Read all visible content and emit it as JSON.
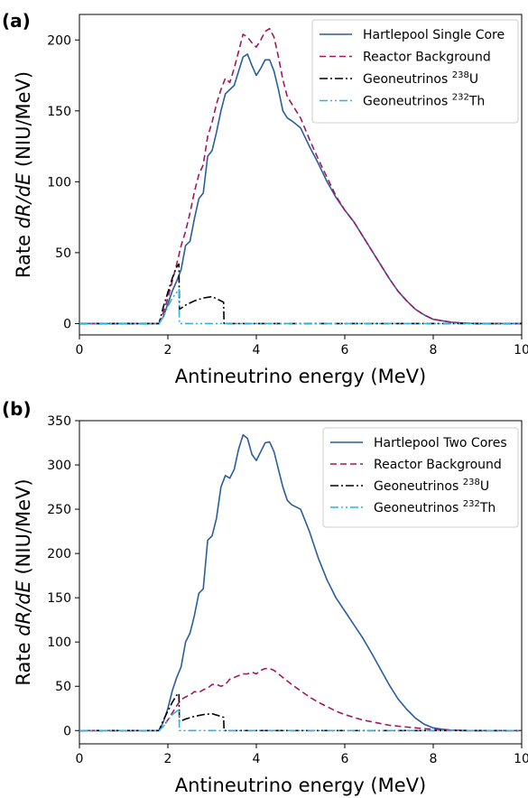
{
  "chart_data": [
    {
      "panel_label": "(a)",
      "type": "line",
      "xlabel": "Antineutrino energy (MeV)",
      "ylabel_prefix": "Rate ",
      "ylabel_italic": "dR/dE",
      "ylabel_suffix": " (NIU/MeV)",
      "xlim": [
        0,
        10
      ],
      "ylim": [
        -8,
        218
      ],
      "xticks": [
        0,
        2,
        4,
        6,
        8,
        10
      ],
      "yticks": [
        0,
        50,
        100,
        150,
        200
      ],
      "legend_position": "top-right",
      "series": [
        {
          "name": "Hartlepool Single Core",
          "color": "#2a5d9f",
          "dash": "solid",
          "x": [
            0,
            1.8,
            1.9,
            2.0,
            2.1,
            2.2,
            2.3,
            2.4,
            2.5,
            2.6,
            2.7,
            2.8,
            2.9,
            3.0,
            3.1,
            3.2,
            3.3,
            3.4,
            3.5,
            3.6,
            3.7,
            3.8,
            3.9,
            4.0,
            4.1,
            4.2,
            4.3,
            4.4,
            4.5,
            4.6,
            4.7,
            4.8,
            5.0,
            5.2,
            5.4,
            5.6,
            5.8,
            6.0,
            6.2,
            6.4,
            6.6,
            6.8,
            7.0,
            7.2,
            7.4,
            7.6,
            7.8,
            8.0,
            8.2,
            8.4,
            8.6,
            8.8,
            9.0,
            10.0
          ],
          "y": [
            0,
            0,
            5,
            14,
            23,
            30,
            38,
            55,
            58,
            74,
            88,
            92,
            118,
            122,
            135,
            150,
            162,
            165,
            168,
            178,
            188,
            190,
            182,
            175,
            180,
            186,
            186,
            178,
            165,
            150,
            145,
            143,
            138,
            125,
            113,
            100,
            89,
            80,
            72,
            62,
            52,
            42,
            32,
            23,
            16,
            10,
            6,
            3,
            2,
            1,
            0.5,
            0.2,
            0,
            0
          ]
        },
        {
          "name": "Reactor Background",
          "color": "#a3175e",
          "dash": "7,4",
          "x": [
            0,
            1.8,
            1.9,
            2.0,
            2.1,
            2.2,
            2.3,
            2.4,
            2.5,
            2.6,
            2.7,
            2.8,
            2.9,
            3.0,
            3.1,
            3.2,
            3.3,
            3.4,
            3.5,
            3.6,
            3.7,
            3.8,
            3.9,
            4.0,
            4.1,
            4.2,
            4.3,
            4.4,
            4.5,
            4.6,
            4.7,
            4.8,
            5.0,
            5.2,
            5.4,
            5.6,
            5.8,
            6.0,
            6.2,
            6.4,
            6.6,
            6.8,
            7.0,
            7.2,
            7.4,
            7.6,
            7.8,
            8.0,
            8.2,
            8.4,
            8.6,
            8.8,
            9.0,
            10.0
          ],
          "y": [
            0,
            0,
            8,
            18,
            30,
            42,
            55,
            65,
            78,
            93,
            105,
            112,
            132,
            142,
            155,
            165,
            173,
            170,
            180,
            192,
            204,
            202,
            198,
            195,
            200,
            206,
            208,
            202,
            188,
            172,
            160,
            155,
            145,
            130,
            116,
            103,
            90,
            80,
            72,
            62,
            52,
            42,
            32,
            23,
            16,
            10,
            6,
            3,
            2,
            1,
            0.5,
            0.2,
            0,
            0
          ]
        },
        {
          "name_prefix": "Geoneutrinos ",
          "name_sup": "238",
          "name_suffix": "U",
          "color": "#000000",
          "dash": "9,3,2,3",
          "x": [
            0,
            1.8,
            1.9,
            2.0,
            2.1,
            2.2,
            2.25,
            2.26,
            2.4,
            2.6,
            2.8,
            3.0,
            3.2,
            3.26,
            3.27,
            10.0
          ],
          "y": [
            0,
            0,
            12,
            22,
            32,
            40,
            42,
            10,
            13,
            16,
            18,
            19,
            16,
            15,
            0,
            0
          ]
        },
        {
          "name_prefix": "Geoneutrinos ",
          "name_sup": "232",
          "name_suffix": "Th",
          "color": "#2bb3e8",
          "dash": "9,3,2,3,2,3",
          "x": [
            0,
            1.8,
            1.9,
            2.0,
            2.1,
            2.2,
            2.25,
            2.26,
            10.0
          ],
          "y": [
            0,
            0,
            5,
            12,
            18,
            22,
            24,
            0,
            0
          ]
        }
      ]
    },
    {
      "panel_label": "(b)",
      "type": "line",
      "xlabel": "Antineutrino energy (MeV)",
      "ylabel_prefix": "Rate ",
      "ylabel_italic": "dR/dE",
      "ylabel_suffix": " (NIU/MeV)",
      "xlim": [
        0,
        10
      ],
      "ylim": [
        -15,
        350
      ],
      "xticks": [
        0,
        2,
        4,
        6,
        8,
        10
      ],
      "yticks": [
        0,
        50,
        100,
        150,
        200,
        250,
        300,
        350
      ],
      "legend_position": "top-right",
      "series": [
        {
          "name": "Hartlepool Two Cores",
          "color": "#2a5d9f",
          "dash": "solid",
          "x": [
            0,
            1.8,
            1.9,
            2.0,
            2.1,
            2.2,
            2.3,
            2.4,
            2.5,
            2.6,
            2.7,
            2.8,
            2.9,
            3.0,
            3.1,
            3.2,
            3.3,
            3.4,
            3.5,
            3.6,
            3.7,
            3.8,
            3.9,
            4.0,
            4.1,
            4.2,
            4.3,
            4.4,
            4.5,
            4.6,
            4.7,
            4.8,
            5.0,
            5.2,
            5.4,
            5.6,
            5.8,
            6.0,
            6.2,
            6.4,
            6.6,
            6.8,
            7.0,
            7.2,
            7.4,
            7.6,
            7.8,
            8.0,
            8.2,
            8.4,
            8.6,
            8.8,
            9.0,
            10.0
          ],
          "y": [
            0,
            0,
            10,
            25,
            45,
            60,
            72,
            100,
            110,
            130,
            155,
            160,
            215,
            220,
            240,
            275,
            288,
            285,
            295,
            318,
            334,
            330,
            312,
            305,
            315,
            325,
            326,
            315,
            295,
            275,
            260,
            255,
            250,
            225,
            195,
            170,
            150,
            135,
            120,
            105,
            88,
            70,
            52,
            36,
            24,
            14,
            7,
            3,
            1.5,
            0.5,
            0.2,
            0,
            0,
            0
          ]
        },
        {
          "name": "Reactor Background",
          "color": "#a3175e",
          "dash": "7,4",
          "x": [
            0,
            1.8,
            1.9,
            2.0,
            2.1,
            2.2,
            2.3,
            2.4,
            2.5,
            2.6,
            2.7,
            2.8,
            2.9,
            3.0,
            3.1,
            3.2,
            3.3,
            3.4,
            3.5,
            3.6,
            3.7,
            3.8,
            3.9,
            4.0,
            4.1,
            4.2,
            4.3,
            4.4,
            4.5,
            4.6,
            4.7,
            4.8,
            5.0,
            5.2,
            5.4,
            5.6,
            5.8,
            6.0,
            6.2,
            6.4,
            6.6,
            6.8,
            7.0,
            7.2,
            7.4,
            7.6,
            7.8,
            8.0,
            8.2,
            8.4,
            8.6,
            8.8,
            9.0,
            10.0
          ],
          "y": [
            0,
            0,
            5,
            12,
            20,
            28,
            35,
            38,
            40,
            44,
            43,
            46,
            48,
            52,
            52,
            50,
            52,
            58,
            60,
            62,
            64,
            64,
            66,
            64,
            68,
            70,
            70,
            68,
            64,
            60,
            56,
            52,
            45,
            38,
            32,
            27,
            22,
            18,
            15,
            12,
            10,
            8,
            6,
            5,
            4,
            3,
            2,
            1.5,
            1,
            0.5,
            0.2,
            0,
            0,
            0
          ]
        },
        {
          "name_prefix": "Geoneutrinos ",
          "name_sup": "238",
          "name_suffix": "U",
          "color": "#000000",
          "dash": "9,3,2,3",
          "x": [
            0,
            1.8,
            1.9,
            2.0,
            2.1,
            2.2,
            2.25,
            2.26,
            2.4,
            2.6,
            2.8,
            3.0,
            3.2,
            3.26,
            3.27,
            10.0
          ],
          "y": [
            0,
            0,
            12,
            22,
            32,
            40,
            42,
            10,
            13,
            16,
            18,
            19,
            16,
            15,
            0,
            0
          ]
        },
        {
          "name_prefix": "Geoneutrinos ",
          "name_sup": "232",
          "name_suffix": "Th",
          "color": "#2bb3e8",
          "dash": "9,3,2,3,2,3",
          "x": [
            0,
            1.8,
            1.9,
            2.0,
            2.1,
            2.2,
            2.25,
            2.26,
            10.0
          ],
          "y": [
            0,
            0,
            5,
            12,
            18,
            22,
            24,
            0,
            0
          ]
        }
      ]
    }
  ]
}
